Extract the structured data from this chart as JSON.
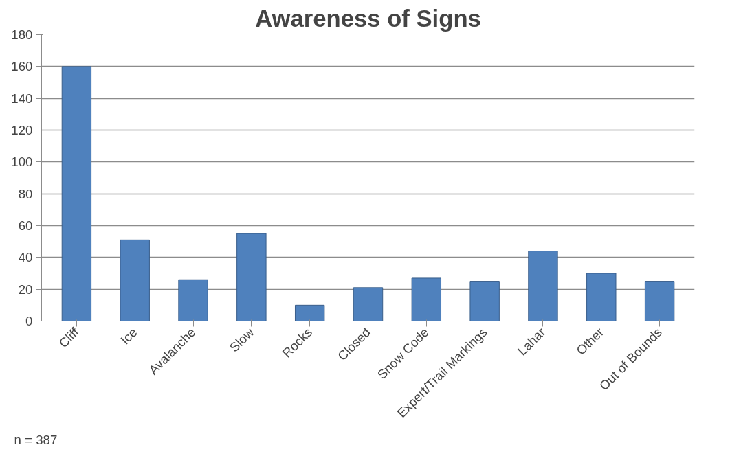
{
  "chart_data": {
    "type": "bar",
    "title": "Awareness of Signs",
    "categories": [
      "Cliff",
      "Ice",
      "Avalanche",
      "Slow",
      "Rocks",
      "Closed",
      "Snow Code",
      "Expert/Trail Markings",
      "Lahar",
      "Other",
      "Out of Bounds"
    ],
    "values": [
      160,
      51,
      26,
      55,
      10,
      21,
      27,
      25,
      44,
      30,
      25
    ],
    "color": "#4f81bd",
    "ylim": [
      0,
      180
    ],
    "yticks": [
      0,
      20,
      40,
      60,
      80,
      100,
      120,
      140,
      160,
      180
    ],
    "grid": "y",
    "annotations": [
      "n = 387"
    ]
  }
}
